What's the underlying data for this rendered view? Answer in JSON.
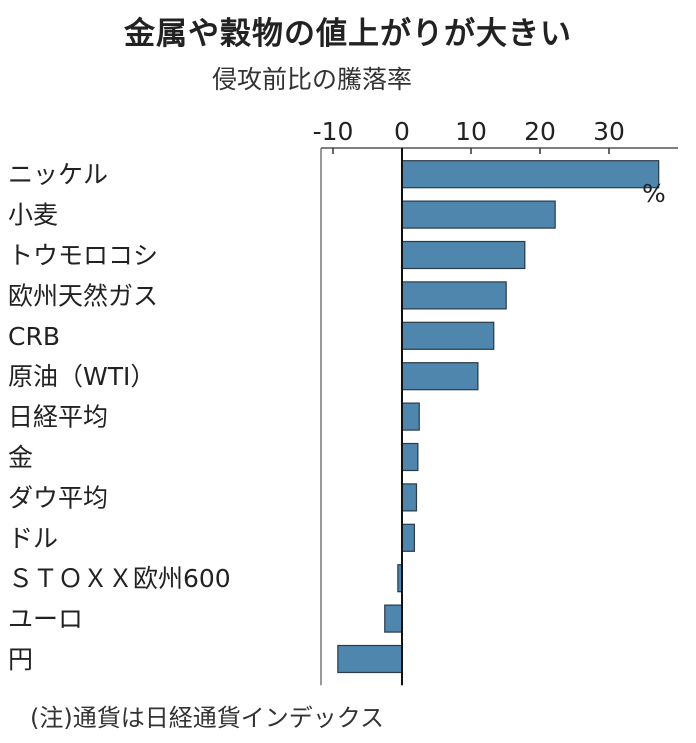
{
  "title": "金属や穀物の値上がりが大きい",
  "subtitle": "侵攻前比の騰落率",
  "note": "(注)通貨は日経通貨インデックス",
  "chart_data": {
    "type": "bar",
    "orientation": "horizontal",
    "title": "金属や穀物の値上がりが大きい",
    "subtitle": "侵攻前比の騰落率",
    "unit_label": "%",
    "categories": [
      "ニッケル",
      "小麦",
      "トウモロコシ",
      "欧州天然ガス",
      "CRB",
      "原油（WTI）",
      "日経平均",
      "金",
      "ダウ平均",
      "ドル",
      "ＳＴＯＸＸ欧州600",
      "ユーロ",
      "円"
    ],
    "values": [
      37.2,
      22.2,
      17.8,
      15.1,
      13.3,
      11.0,
      2.5,
      2.3,
      2.1,
      1.8,
      -0.6,
      -2.5,
      -9.3
    ],
    "xticks": [
      -10,
      0,
      10,
      20,
      30
    ],
    "xlim": [
      -11.5,
      40
    ],
    "axis_position": "top",
    "grid": false,
    "bar_color": "#4f86ad"
  }
}
